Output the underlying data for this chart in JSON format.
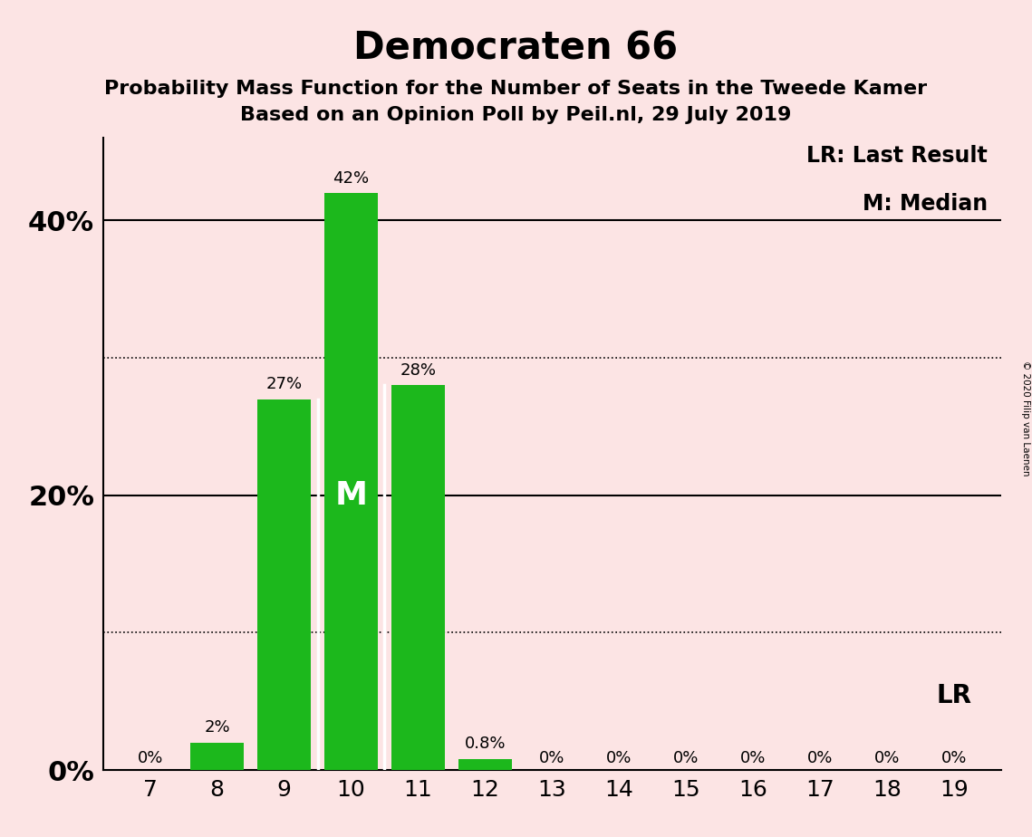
{
  "title": "Democraten 66",
  "subtitle1": "Probability Mass Function for the Number of Seats in the Tweede Kamer",
  "subtitle2": "Based on an Opinion Poll by Peil.nl, 29 July 2019",
  "copyright": "© 2020 Filip van Laenen",
  "seats": [
    7,
    8,
    9,
    10,
    11,
    12,
    13,
    14,
    15,
    16,
    17,
    18,
    19
  ],
  "probabilities": [
    0.0,
    2.0,
    27.0,
    42.0,
    28.0,
    0.8,
    0.0,
    0.0,
    0.0,
    0.0,
    0.0,
    0.0,
    0.0
  ],
  "labels": [
    "0%",
    "2%",
    "27%",
    "42%",
    "28%",
    "0.8%",
    "0%",
    "0%",
    "0%",
    "0%",
    "0%",
    "0%",
    "0%"
  ],
  "bar_color": "#1cb81c",
  "background_color": "#fce4e4",
  "median_seat": 10,
  "last_result_seat": 19,
  "median_label": "M",
  "lr_label": "LR",
  "legend_lr": "LR: Last Result",
  "legend_m": "M: Median",
  "yticks": [
    0,
    20,
    40
  ],
  "ytick_labels": [
    "0%",
    "20%",
    "40%"
  ],
  "ylim": [
    0,
    46
  ],
  "dotted_lines": [
    10,
    30
  ],
  "solid_lines": [
    20,
    40
  ],
  "bar_width": 0.8,
  "title_fontsize": 30,
  "subtitle_fontsize": 16,
  "label_fontsize": 13,
  "ytick_fontsize": 22,
  "xtick_fontsize": 18,
  "legend_fontsize": 17,
  "median_fontsize": 26,
  "lr_fontsize": 20
}
